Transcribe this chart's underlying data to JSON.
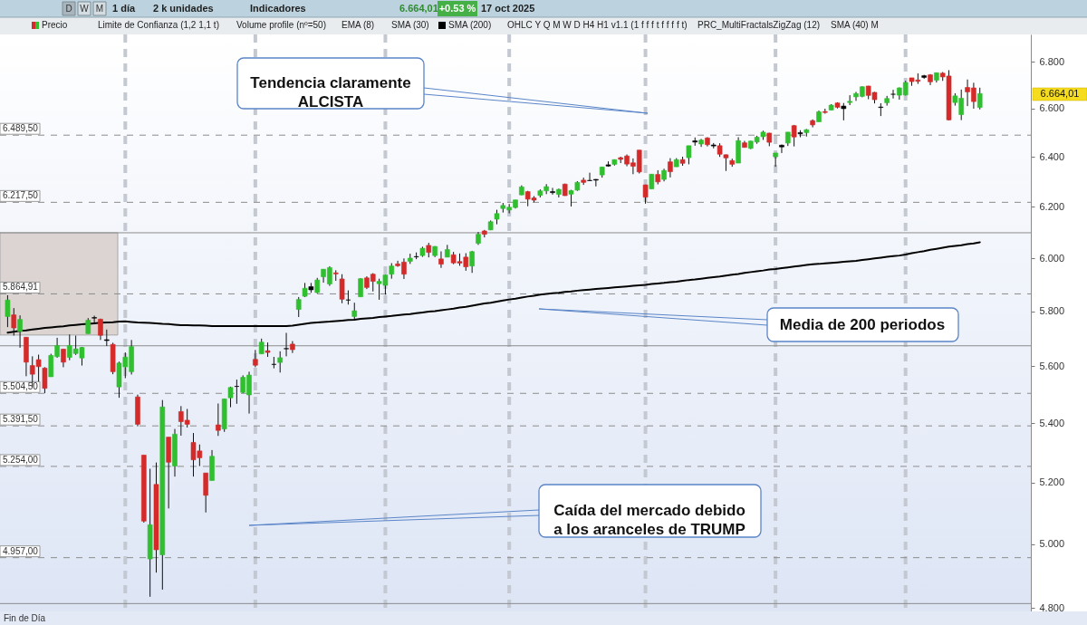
{
  "chart_data": {
    "type": "candlestick",
    "categories": [
      null,
      null,
      null,
      null,
      null,
      null,
      null,
      null,
      null,
      null,
      null,
      null,
      null,
      null,
      null,
      null,
      null,
      null,
      null,
      null,
      null,
      null,
      null,
      null,
      null,
      null,
      null,
      null,
      null,
      null,
      null,
      null,
      null,
      null,
      null,
      null,
      null,
      null,
      null,
      null,
      null,
      null,
      null,
      null,
      null,
      null,
      null,
      null,
      null,
      null,
      null,
      null,
      null,
      null,
      null,
      null,
      null,
      null,
      null,
      null,
      null,
      null,
      null,
      null,
      null,
      null,
      null,
      null,
      null,
      null,
      null,
      null,
      null,
      null,
      null,
      null,
      null,
      null,
      null,
      null,
      null,
      null,
      null,
      null,
      null,
      null,
      null,
      null,
      null,
      null,
      null,
      null,
      null,
      null,
      null,
      null,
      null,
      null,
      null,
      null,
      null,
      null,
      null,
      null,
      null,
      null,
      null,
      null,
      null,
      null,
      null,
      null,
      null,
      null,
      null,
      null,
      null,
      null,
      null,
      null,
      null,
      null,
      null,
      null,
      null,
      null,
      null,
      null,
      null,
      null,
      null,
      null,
      null,
      null,
      null,
      null,
      null,
      null,
      null,
      null,
      null,
      null,
      null,
      null,
      null,
      null,
      null,
      null,
      null,
      null,
      null,
      null,
      null,
      null,
      null,
      null,
      null,
      null,
      null,
      null,
      null,
      null,
      null,
      null,
      null
    ],
    "series": [
      {
        "name": "Precio",
        "type": "candlestick",
        "ohlc": [
          [
            5781,
            5860,
            5742,
            5842
          ],
          [
            5787,
            5812,
            5711,
            5739
          ],
          [
            5726,
            5785,
            5667,
            5770
          ],
          [
            5705,
            5706,
            5565,
            5615
          ],
          [
            5603,
            5636,
            5529,
            5572
          ],
          [
            5624,
            5642,
            5546,
            5599
          ],
          [
            5594,
            5597,
            5505,
            5522
          ],
          [
            5563,
            5645,
            5563,
            5639
          ],
          [
            5635,
            5703,
            5631,
            5675
          ],
          [
            5662,
            5663,
            5597,
            5615
          ],
          [
            5632,
            5715,
            5622,
            5675
          ],
          [
            5646,
            5711,
            5641,
            5663
          ],
          [
            5630,
            5670,
            5603,
            5668
          ],
          [
            5718,
            5775,
            5718,
            5767
          ],
          [
            5775,
            5784,
            5759,
            5777
          ],
          [
            5771,
            5773,
            5695,
            5712
          ],
          [
            5696,
            5733,
            5673,
            5693
          ],
          [
            5679,
            5685,
            5572,
            5581
          ],
          [
            5527,
            5617,
            5489,
            5612
          ],
          [
            5598,
            5650,
            5558,
            5633
          ],
          [
            5581,
            5695,
            5571,
            5671
          ],
          [
            5492,
            5500,
            5390,
            5397
          ],
          [
            5292,
            5292,
            5069,
            5074
          ],
          [
            4953,
            5246,
            4835,
            5062
          ],
          [
            5194,
            5267,
            4910,
            4982
          ],
          [
            4966,
            5481,
            4857,
            5457
          ],
          [
            5353,
            5353,
            5115,
            5268
          ],
          [
            5255,
            5381,
            5220,
            5363
          ],
          [
            5441,
            5460,
            5358,
            5406
          ],
          [
            5411,
            5450,
            5386,
            5397
          ],
          [
            5335,
            5367,
            5220,
            5276
          ],
          [
            5306,
            5328,
            5255,
            5283
          ],
          [
            5232,
            5232,
            5102,
            5158
          ],
          [
            5207,
            5309,
            5207,
            5288
          ],
          [
            5395,
            5469,
            5357,
            5376
          ],
          [
            5381,
            5486,
            5371,
            5485
          ],
          [
            5489,
            5528,
            5456,
            5525
          ],
          [
            5529,
            5553,
            5468,
            5529
          ],
          [
            5508,
            5568,
            5505,
            5561
          ],
          [
            5499,
            5581,
            5434,
            5569
          ],
          [
            5625,
            5659,
            5597,
            5604
          ],
          [
            5645,
            5700,
            5645,
            5687
          ],
          [
            5656,
            5686,
            5634,
            5650
          ],
          [
            5607,
            5634,
            5593,
            5607
          ],
          [
            5614,
            5654,
            5578,
            5631
          ],
          [
            5663,
            5721,
            5636,
            5664
          ],
          [
            5680,
            5691,
            5648,
            5660
          ],
          [
            5807,
            5853,
            5779,
            5844
          ],
          [
            5856,
            5906,
            5853,
            5886
          ],
          [
            5880,
            5906,
            5869,
            5892
          ],
          [
            5870,
            5925,
            5867,
            5917
          ],
          [
            5929,
            5958,
            5907,
            5958
          ],
          [
            5902,
            5969,
            5895,
            5964
          ],
          [
            5944,
            5954,
            5914,
            5940
          ],
          [
            5921,
            5939,
            5830,
            5845
          ],
          [
            5842,
            5878,
            5825,
            5842
          ],
          [
            5781,
            5832,
            5767,
            5802
          ],
          [
            5854,
            5924,
            5854,
            5922
          ],
          [
            5925,
            5931,
            5883,
            5889
          ],
          [
            5939,
            5943,
            5874,
            5912
          ],
          [
            5903,
            5922,
            5843,
            5912
          ],
          [
            5897,
            5937,
            5862,
            5936
          ],
          [
            5939,
            5981,
            5922,
            5970
          ],
          [
            5978,
            5990,
            5967,
            5971
          ],
          [
            5985,
            5999,
            5921,
            5939
          ],
          [
            5988,
            6017,
            5978,
            6000
          ],
          [
            6005,
            6022,
            5996,
            6006
          ],
          [
            6010,
            6044,
            6005,
            6038
          ],
          [
            6049,
            6059,
            6003,
            6022
          ],
          [
            6010,
            6046,
            6004,
            6045
          ],
          [
            5997,
            6026,
            5963,
            5977
          ],
          [
            6004,
            6051,
            6004,
            6033
          ],
          [
            6013,
            6024,
            5977,
            5982
          ],
          [
            5987,
            6018,
            5971,
            5981
          ],
          [
            6004,
            6019,
            5952,
            5967
          ],
          [
            5970,
            6028,
            5944,
            6025
          ],
          [
            6057,
            6101,
            6051,
            6092
          ],
          [
            6105,
            6109,
            6080,
            6092
          ],
          [
            6109,
            6146,
            6108,
            6141
          ],
          [
            6151,
            6188,
            6131,
            6173
          ],
          [
            6193,
            6215,
            6177,
            6205
          ],
          [
            6187,
            6211,
            6174,
            6198
          ],
          [
            6197,
            6227,
            6193,
            6227
          ],
          [
            6247,
            6285,
            6246,
            6279
          ],
          [
            6260,
            6263,
            6202,
            6230
          ],
          [
            6235,
            6242,
            6218,
            6226
          ],
          [
            6245,
            6269,
            6237,
            6263
          ],
          [
            6263,
            6290,
            6250,
            6280
          ],
          [
            6256,
            6275,
            6248,
            6260
          ],
          [
            6249,
            6272,
            6237,
            6269
          ],
          [
            6290,
            6292,
            6243,
            6244
          ],
          [
            6250,
            6267,
            6201,
            6264
          ],
          [
            6266,
            6302,
            6263,
            6297
          ],
          [
            6306,
            6316,
            6287,
            6297
          ],
          [
            6304,
            6336,
            6303,
            6305
          ],
          [
            6306,
            6310,
            6281,
            6309
          ],
          [
            6327,
            6360,
            6316,
            6359
          ],
          [
            6368,
            6382,
            6360,
            6363
          ],
          [
            6370,
            6390,
            6365,
            6389
          ],
          [
            6397,
            6401,
            6375,
            6390
          ],
          [
            6404,
            6410,
            6362,
            6371
          ],
          [
            6376,
            6394,
            6330,
            6362
          ],
          [
            6428,
            6428,
            6333,
            6339
          ],
          [
            6287,
            6288,
            6212,
            6238
          ],
          [
            6271,
            6330,
            6271,
            6330
          ],
          [
            6329,
            6346,
            6289,
            6299
          ],
          [
            6309,
            6352,
            6301,
            6345
          ],
          [
            6380,
            6395,
            6317,
            6340
          ],
          [
            6360,
            6395,
            6360,
            6389
          ],
          [
            6389,
            6401,
            6364,
            6374
          ],
          [
            6397,
            6446,
            6370,
            6446
          ],
          [
            6461,
            6480,
            6446,
            6466
          ],
          [
            6453,
            6474,
            6441,
            6469
          ],
          [
            6478,
            6481,
            6443,
            6450
          ],
          [
            6445,
            6457,
            6435,
            6449
          ],
          [
            6446,
            6456,
            6400,
            6411
          ],
          [
            6409,
            6410,
            6343,
            6396
          ],
          [
            6385,
            6393,
            6360,
            6370
          ],
          [
            6375,
            6481,
            6375,
            6467
          ],
          [
            6458,
            6466,
            6438,
            6439
          ],
          [
            6435,
            6466,
            6432,
            6465
          ],
          [
            6461,
            6487,
            6454,
            6481
          ],
          [
            6483,
            6508,
            6470,
            6502
          ],
          [
            6498,
            6499,
            6444,
            6460
          ],
          [
            6401,
            6416,
            6360,
            6416
          ],
          [
            6441,
            6451,
            6416,
            6448
          ],
          [
            6457,
            6502,
            6445,
            6502
          ],
          [
            6529,
            6532,
            6443,
            6482
          ],
          [
            6500,
            6510,
            6481,
            6495
          ],
          [
            6500,
            6515,
            6484,
            6512
          ],
          [
            6550,
            6555,
            6522,
            6532
          ],
          [
            6545,
            6592,
            6545,
            6587
          ],
          [
            6588,
            6600,
            6579,
            6584
          ],
          [
            6594,
            6619,
            6594,
            6615
          ],
          [
            6624,
            6627,
            6601,
            6606
          ],
          [
            6611,
            6624,
            6551,
            6600
          ],
          [
            6626,
            6657,
            6615,
            6631
          ],
          [
            6650,
            6671,
            6633,
            6664
          ],
          [
            6652,
            6695,
            6648,
            6693
          ],
          [
            6696,
            6697,
            6640,
            6656
          ],
          [
            6669,
            6671,
            6622,
            6638
          ],
          [
            6607,
            6623,
            6569,
            6605
          ],
          [
            6625,
            6654,
            6613,
            6643
          ],
          [
            6661,
            6680,
            6643,
            6661
          ],
          [
            6657,
            6690,
            6638,
            6688
          ],
          [
            6658,
            6718,
            6656,
            6711
          ],
          [
            6731,
            6731,
            6697,
            6715
          ],
          [
            6722,
            6750,
            6705,
            6716
          ],
          [
            6733,
            6744,
            6727,
            6740
          ],
          [
            6744,
            6747,
            6700,
            6714
          ],
          [
            6721,
            6753,
            6711,
            6753
          ],
          [
            6751,
            6756,
            6718,
            6735
          ],
          [
            6739,
            6764,
            6551,
            6553
          ],
          [
            6626,
            6665,
            6613,
            6654
          ],
          [
            6575,
            6681,
            6552,
            6644
          ],
          [
            6690,
            6724,
            6611,
            6671
          ],
          [
            6688,
            6710,
            6600,
            6630
          ],
          [
            6605,
            6689,
            6597,
            6664
          ],
          null,
          null,
          null,
          null,
          null,
          null,
          null
        ],
        "colors": [
          "#2fbf2f",
          "#d42a2a",
          "#2fbf2f",
          "#d42a2a",
          "#d42a2a",
          "#d42a2a",
          "#d42a2a",
          "#2fbf2f",
          "#2fbf2f",
          "#d42a2a",
          "#2fbf2f",
          "#2fbf2f",
          "#2fbf2f",
          "#2fbf2f",
          "#000000",
          "#d42a2a",
          "#000000",
          "#d42a2a",
          "#2fbf2f",
          "#2fbf2f",
          "#2fbf2f",
          "#d42a2a",
          "#d42a2a",
          "#2fbf2f",
          "#d42a2a",
          "#2fbf2f",
          "#d42a2a",
          "#2fbf2f",
          "#d42a2a",
          "#d42a2a",
          "#d42a2a",
          "#d42a2a",
          "#d42a2a",
          "#2fbf2f",
          "#d42a2a",
          "#2fbf2f",
          "#2fbf2f",
          "#000000",
          "#2fbf2f",
          "#2fbf2f",
          "#d42a2a",
          "#2fbf2f",
          "#d42a2a",
          "#000000",
          "#2fbf2f",
          "#000000",
          "#d42a2a",
          "#2fbf2f",
          "#2fbf2f",
          "#000000",
          "#2fbf2f",
          "#2fbf2f",
          "#2fbf2f",
          "#d42a2a",
          "#d42a2a",
          "#000000",
          "#2fbf2f",
          "#2fbf2f",
          "#d42a2a",
          "#d42a2a",
          "#2fbf2f",
          "#2fbf2f",
          "#2fbf2f",
          "#d42a2a",
          "#d42a2a",
          "#2fbf2f",
          "#000000",
          "#2fbf2f",
          "#d42a2a",
          "#2fbf2f",
          "#d42a2a",
          "#2fbf2f",
          "#d42a2a",
          "#d42a2a",
          "#d42a2a",
          "#2fbf2f",
          "#2fbf2f",
          "#d42a2a",
          "#2fbf2f",
          "#2fbf2f",
          "#2fbf2f",
          "#2fbf2f",
          "#2fbf2f",
          "#2fbf2f",
          "#d42a2a",
          "#d42a2a",
          "#2fbf2f",
          "#2fbf2f",
          "#000000",
          "#2fbf2f",
          "#d42a2a",
          "#2fbf2f",
          "#2fbf2f",
          "#d42a2a",
          "#000000",
          "#000000",
          "#2fbf2f",
          "#000000",
          "#2fbf2f",
          "#d42a2a",
          "#d42a2a",
          "#d42a2a",
          "#d42a2a",
          "#d42a2a",
          "#2fbf2f",
          "#d42a2a",
          "#2fbf2f",
          "#d42a2a",
          "#2fbf2f",
          "#d42a2a",
          "#2fbf2f",
          "#000000",
          "#2fbf2f",
          "#d42a2a",
          "#000000",
          "#d42a2a",
          "#d42a2a",
          "#d42a2a",
          "#2fbf2f",
          "#d42a2a",
          "#2fbf2f",
          "#2fbf2f",
          "#2fbf2f",
          "#d42a2a",
          "#2fbf2f",
          "#000000",
          "#2fbf2f",
          "#d42a2a",
          "#000000",
          "#2fbf2f",
          "#d42a2a",
          "#2fbf2f",
          "#d42a2a",
          "#2fbf2f",
          "#d42a2a",
          "#000000",
          "#2fbf2f",
          "#2fbf2f",
          "#2fbf2f",
          "#d42a2a",
          "#d42a2a",
          "#000000",
          "#2fbf2f",
          "#000000",
          "#2fbf2f",
          "#2fbf2f",
          "#d42a2a",
          "#d42a2a",
          "#000000",
          "#d42a2a",
          "#2fbf2f",
          "#d42a2a",
          "#d42a2a",
          "#2fbf2f",
          "#2fbf2f",
          "#d42a2a",
          "#d42a2a",
          "#2fbf2f",
          null,
          null,
          null,
          null,
          null,
          null,
          null
        ]
      },
      {
        "name": "SMA (200)",
        "type": "line",
        "color": "#000000",
        "values": [
          5722,
          5725,
          5728,
          5730,
          5733,
          5736,
          5739,
          5741,
          5743,
          5745,
          5748,
          5750,
          5752,
          5754,
          5756,
          5758,
          5759,
          5760,
          5762,
          5763,
          5761,
          5759,
          5758,
          5757,
          5756,
          5754,
          5753,
          5751,
          5749,
          5749,
          5748,
          5748,
          5747,
          5746,
          5746,
          5746,
          5746,
          5746,
          5746,
          5746,
          5746,
          5746,
          5746,
          5746,
          5746,
          5746,
          5747,
          5751,
          5754,
          5757,
          5759,
          5761,
          5762,
          5764,
          5766,
          5768,
          5769,
          5772,
          5774,
          5776,
          5779,
          5781,
          5783,
          5786,
          5788,
          5790,
          5793,
          5796,
          5799,
          5801,
          5804,
          5807,
          5810,
          5814,
          5817,
          5821,
          5825,
          5829,
          5832,
          5836,
          5840,
          5844,
          5847,
          5851,
          5855,
          5858,
          5862,
          5865,
          5867,
          5869,
          5872,
          5874,
          5877,
          5879,
          5881,
          5883,
          5885,
          5887,
          5889,
          5891,
          5893,
          5895,
          5897,
          5899,
          5902,
          5904,
          5906,
          5909,
          5911,
          5914,
          5917,
          5919,
          5922,
          5925,
          5928,
          5930,
          5934,
          5937,
          5940,
          5944,
          5947,
          5950,
          5953,
          5957,
          5959,
          5962,
          5965,
          5968,
          5971,
          5974,
          5977,
          5978,
          5980,
          5982,
          5984,
          5986,
          5988,
          5990,
          5993,
          5996,
          5999,
          6002,
          6005,
          6008,
          6010,
          6014,
          6019,
          6023,
          6027,
          6032,
          6036,
          6040,
          6044,
          6047,
          6050,
          6054,
          6057,
          6061,
          null,
          null,
          null,
          null,
          null,
          null,
          null
        ]
      }
    ],
    "ylim": [
      4790,
      6920
    ],
    "log": true,
    "yticks": [
      {
        "value": 4800,
        "label": "4.800"
      },
      {
        "value": 5000,
        "label": "5.000"
      },
      {
        "value": 5200,
        "label": "5.200"
      },
      {
        "value": 5400,
        "label": "5.400"
      },
      {
        "value": 5600,
        "label": "5.600"
      },
      {
        "value": 5800,
        "label": "5.800"
      },
      {
        "value": 6000,
        "label": "6.000"
      },
      {
        "value": 6200,
        "label": "6.200"
      },
      {
        "value": 6400,
        "label": "6.400"
      },
      {
        "value": 6600,
        "label": "6.600"
      },
      {
        "value": 6800,
        "label": "6.800"
      }
    ],
    "tick_labels": "y",
    "legend": "top left",
    "ref_lines": [
      {
        "axis": "y",
        "value": 6489.5,
        "label": "6.489,50",
        "line_style": "dashed",
        "color": "#8c8c8c"
      },
      {
        "axis": "y",
        "value": 6217.5,
        "label": "6.217,50",
        "line_style": "dashed",
        "color": "#8c8c8c"
      },
      {
        "axis": "y",
        "value": 5864.91,
        "label": "5.864,91",
        "line_style": "dashed",
        "color": "#8c8c8c"
      },
      {
        "axis": "y",
        "value": 5504.5,
        "label": "5.504,50",
        "line_style": "dashed",
        "color": "#8c8c8c"
      },
      {
        "axis": "y",
        "value": 5391.5,
        "label": "5.391,50",
        "line_style": "dashed",
        "color": "#8c8c8c"
      },
      {
        "axis": "y",
        "value": 5254,
        "label": "5.254,00",
        "line_style": "dashed",
        "color": "#8c8c8c"
      },
      {
        "axis": "y",
        "value": 4957,
        "label": "4.957,00",
        "line_style": "dashed",
        "color": "#8c8c8c"
      },
      {
        "axis": "y",
        "value": 6098,
        "line_style": "solid",
        "color": "#8c8c8c"
      },
      {
        "axis": "y",
        "value": 5674,
        "line_style": "solid",
        "color": "#8c8c8c"
      },
      {
        "axis": "y",
        "value": 4814,
        "line_style": "solid",
        "color": "#8c8c8c"
      }
    ],
    "bands": [
      {
        "axis": "y",
        "from": 5713,
        "to": 6098,
        "color": "#d9cfcb"
      }
    ],
    "annotations": [
      "Tendencia claramente\nALCISTA",
      "Media de 200 periodos",
      "Caída del mercado debido\na los aranceles de TRUMP",
      "Fin de Día",
      "D",
      "W",
      "M",
      "1 día",
      "2 k unidades",
      "Indicadores",
      "6.664,01",
      "+0.53 %",
      "17 oct 2025",
      "Limite de Confianza (1,2 1,1 t)",
      "Volume profile (nº=50)",
      "EMA (8)",
      "SMA (30)",
      "OHLC Y Q M W D H4 H1 v1.1 (1 f f f t f f f f t)",
      "PRC_MultiFractalsZigZag (12)",
      "SMA (40) M",
      "6.664,01"
    ]
  }
}
